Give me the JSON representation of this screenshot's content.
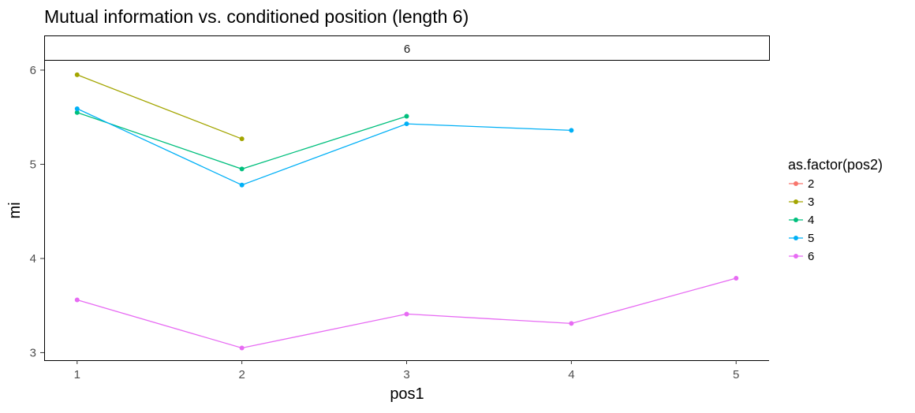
{
  "chart_data": {
    "type": "line",
    "title": "Mutual information vs. conditioned position (length 6)",
    "facet_label": "6",
    "xlabel": "pos1",
    "ylabel": "mi",
    "xlim": [
      0.8,
      5.2
    ],
    "ylim": [
      2.92,
      6.1
    ],
    "x_ticks": [
      1,
      2,
      3,
      4,
      5
    ],
    "y_ticks": [
      3,
      4,
      5,
      6
    ],
    "grid": false,
    "legend": {
      "title": "as.factor(pos2)",
      "placement": "right"
    },
    "series": [
      {
        "name": "2",
        "color": "#f8766d",
        "x": [],
        "y": []
      },
      {
        "name": "3",
        "color": "#a3a500",
        "x": [
          1,
          2
        ],
        "y": [
          5.95,
          5.27
        ]
      },
      {
        "name": "4",
        "color": "#00bf7d",
        "x": [
          1,
          2,
          3
        ],
        "y": [
          5.55,
          4.95,
          5.51
        ]
      },
      {
        "name": "5",
        "color": "#00b0f6",
        "x": [
          1,
          2,
          3,
          4
        ],
        "y": [
          5.59,
          4.78,
          5.43,
          5.36
        ]
      },
      {
        "name": "6",
        "color": "#e76bf3",
        "x": [
          1,
          2,
          3,
          4,
          5
        ],
        "y": [
          3.56,
          3.05,
          3.41,
          3.31,
          3.79
        ]
      }
    ]
  }
}
